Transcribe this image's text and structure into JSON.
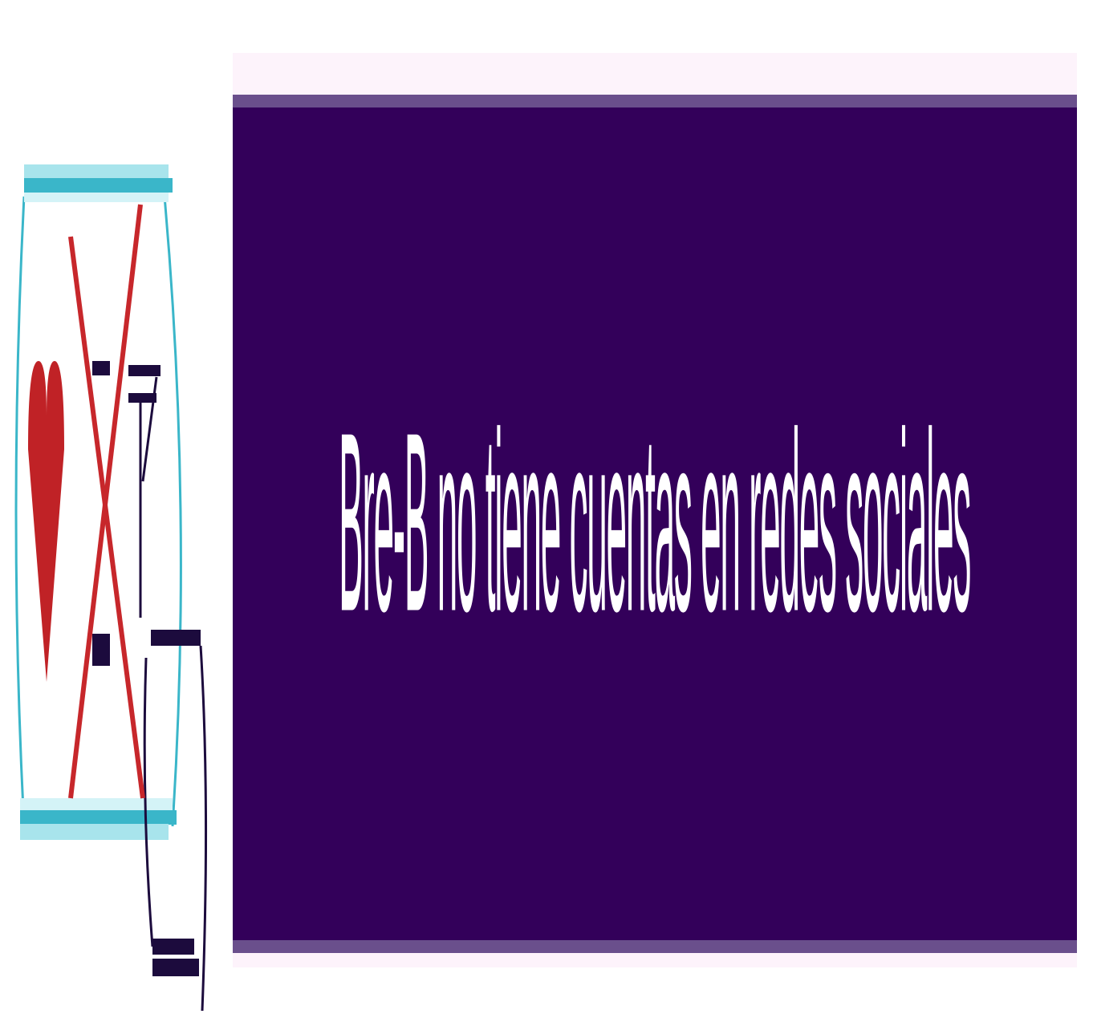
{
  "icon": {
    "name": "no-social-media-icon",
    "colors": {
      "heart": "#c02226",
      "cross": "#c7272b",
      "frame": "#3ab6c9",
      "frame_light": "#a8e4ec",
      "dark": "#1c0b3d"
    }
  },
  "banner": {
    "message": "Bre-B no tiene cuentas en redes sociales",
    "colors": {
      "background": "#33005a",
      "border": "#6a4f8c",
      "text": "#ffffff"
    }
  }
}
